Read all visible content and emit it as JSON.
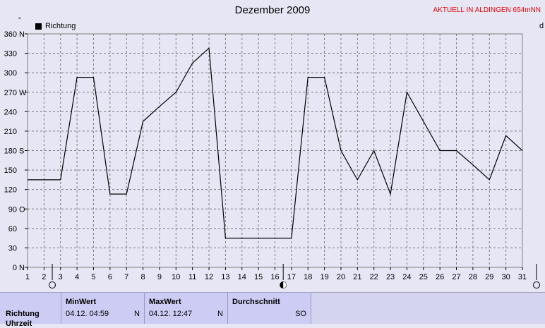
{
  "header": {
    "title": "Dezember 2009",
    "status": "AKTUELL IN ALDINGEN 654mNN",
    "legend_label": "Richtung",
    "unit_symbol": "°",
    "right_label": "d"
  },
  "chart_data": {
    "type": "line",
    "title": "Dezember 2009",
    "xlabel": "",
    "ylabel": "",
    "xlim": [
      1,
      31
    ],
    "ylim": [
      0,
      360
    ],
    "grid": true,
    "legend": "top-left",
    "x": [
      1,
      2,
      3,
      4,
      5,
      6,
      7,
      8,
      9,
      10,
      11,
      12,
      13,
      14,
      15,
      16,
      17,
      18,
      19,
      20,
      21,
      22,
      23,
      24,
      25,
      26,
      27,
      28,
      29,
      30,
      31
    ],
    "series": [
      {
        "name": "Richtung",
        "color": "#000000",
        "values": [
          135,
          135,
          135,
          293,
          293,
          113,
          113,
          225,
          248,
          270,
          315,
          338,
          45,
          45,
          45,
          45,
          45,
          293,
          293,
          180,
          135,
          180,
          113,
          270,
          225,
          180,
          180,
          158,
          135,
          203,
          180
        ]
      }
    ],
    "y_ticks": [
      {
        "value": 0,
        "label": "0",
        "dir": "N"
      },
      {
        "value": 30,
        "label": "30",
        "dir": ""
      },
      {
        "value": 60,
        "label": "60",
        "dir": ""
      },
      {
        "value": 90,
        "label": "90",
        "dir": "O"
      },
      {
        "value": 120,
        "label": "120",
        "dir": ""
      },
      {
        "value": 150,
        "label": "150",
        "dir": ""
      },
      {
        "value": 180,
        "label": "180",
        "dir": "S"
      },
      {
        "value": 210,
        "label": "210",
        "dir": ""
      },
      {
        "value": 240,
        "label": "240",
        "dir": ""
      },
      {
        "value": 270,
        "label": "270",
        "dir": "W"
      },
      {
        "value": 300,
        "label": "300",
        "dir": ""
      },
      {
        "value": 330,
        "label": "330",
        "dir": ""
      },
      {
        "value": 360,
        "label": "360",
        "dir": "N"
      }
    ],
    "x_ticks": [
      "1",
      "2",
      "3",
      "4",
      "5",
      "6",
      "7",
      "8",
      "9",
      "10",
      "11",
      "12",
      "13",
      "14",
      "15",
      "16",
      "17",
      "18",
      "19",
      "20",
      "21",
      "22",
      "23",
      "24",
      "25",
      "26",
      "27",
      "28",
      "29",
      "30",
      "31"
    ],
    "moon_markers": [
      {
        "day": 2,
        "phase": "full-moon-icon"
      },
      {
        "day": 16,
        "phase": "new-moon-icon"
      }
    ]
  },
  "stats": {
    "row_label": "Richtung",
    "row_label_2": "Uhrzeit",
    "min": {
      "header": "MinWert",
      "time": "04.12.  04:59",
      "value": "N"
    },
    "max": {
      "header": "MaxWert",
      "time": "04.12.  12:47",
      "value": "N"
    },
    "avg": {
      "header": "Durchschnitt",
      "value": "SO"
    }
  }
}
